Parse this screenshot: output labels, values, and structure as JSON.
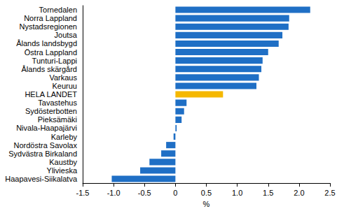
{
  "chart_data": {
    "type": "bar",
    "orientation": "horizontal",
    "categories": [
      "Tornedalen",
      "Norra Lappland",
      "Nystadsregionen",
      "Joutsa",
      "Ålands landsbygd",
      "Östra Lappland",
      "Tunturi-Lappi",
      "Ålands skärgård",
      "Varkaus",
      "Keuruu",
      "HELA LANDET",
      "Tavastehus",
      "Sydösterbotten",
      "Pieksämäki",
      "Nivala-Haapajärvi",
      "Karleby",
      "Nordöstra Savolax",
      "Sydvästra Birkaland",
      "Kaustby",
      "Ylivieska",
      "Haapavesi-Siikalatva"
    ],
    "values": [
      2.18,
      1.84,
      1.83,
      1.73,
      1.67,
      1.5,
      1.41,
      1.39,
      1.35,
      1.31,
      0.77,
      0.18,
      0.14,
      0.1,
      0.02,
      -0.03,
      -0.15,
      -0.23,
      -0.42,
      -0.57,
      -1.03
    ],
    "colors": [
      "#1f6fc5",
      "#1f6fc5",
      "#1f6fc5",
      "#1f6fc5",
      "#1f6fc5",
      "#1f6fc5",
      "#1f6fc5",
      "#1f6fc5",
      "#1f6fc5",
      "#1f6fc5",
      "#f5b800",
      "#1f6fc5",
      "#1f6fc5",
      "#1f6fc5",
      "#1f6fc5",
      "#1f6fc5",
      "#1f6fc5",
      "#1f6fc5",
      "#1f6fc5",
      "#1f6fc5",
      "#1f6fc5"
    ],
    "xlabel": "%",
    "xlim": [
      -1.5,
      2.5
    ],
    "xticks": [
      -1.5,
      {
        "value": -1,
        "label": "-1.0"
      },
      -0.5,
      0,
      0.5,
      {
        "value": 1,
        "label": "1.0"
      },
      1.5,
      {
        "value": 2,
        "label": "2.0"
      },
      2.5
    ],
    "grid": false
  }
}
